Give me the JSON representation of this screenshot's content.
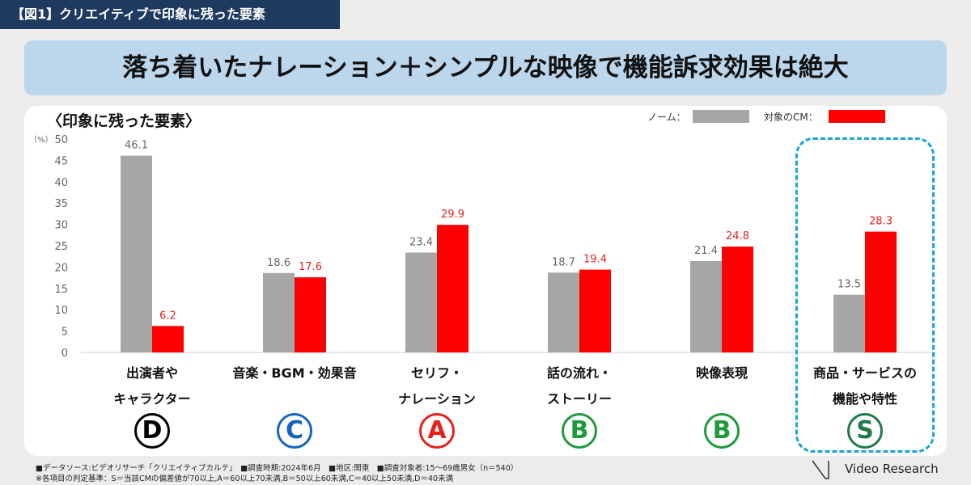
{
  "tag": "【図1】クリエイティブで印象に残った要素",
  "headline": "落ち着いたナレーション＋シンプルな映像で機能訴求効果は絶大",
  "colors": {
    "norm": "#a6a6a6",
    "target": "#ff0000",
    "tag_bg": "#1e3a5f",
    "headline_bg": "#bcd6ec",
    "highlight": "#1aa5d4"
  },
  "chart_data": {
    "type": "bar",
    "title": "〈印象に残った要素〉",
    "ylabel": "（%）",
    "ylim": [
      0,
      50
    ],
    "yticks": [
      "0",
      "5",
      "10",
      "15",
      "20",
      "25",
      "30",
      "35",
      "40",
      "45",
      "50"
    ],
    "categories": [
      [
        "出演者や",
        "キャラクター"
      ],
      [
        "音楽・BGM・効果音"
      ],
      [
        "セリフ・",
        "ナレーション"
      ],
      [
        "話の流れ・",
        "ストーリー"
      ],
      [
        "映像表現"
      ],
      [
        "商品・サービスの",
        "機能や特性"
      ]
    ],
    "series": [
      {
        "name": "ノーム：",
        "values": [
          46.1,
          18.6,
          23.4,
          18.7,
          21.4,
          13.5
        ]
      },
      {
        "name": "対象のCM：",
        "values": [
          6.2,
          17.6,
          29.9,
          19.4,
          24.8,
          28.3
        ]
      }
    ],
    "labels": [
      [
        "46.1",
        "18.6",
        "23.4",
        "18.7",
        "21.4",
        "13.5"
      ],
      [
        "6.2",
        "17.6",
        "29.9",
        "19.4",
        "24.8",
        "28.3"
      ]
    ],
    "grades": [
      {
        "letter": "D",
        "color": "#000000"
      },
      {
        "letter": "C",
        "color": "#1565c0"
      },
      {
        "letter": "A",
        "color": "#e8211e"
      },
      {
        "letter": "B",
        "color": "#1f9a3a"
      },
      {
        "letter": "B",
        "color": "#1f9a3a"
      },
      {
        "letter": "S",
        "color": "#1f7a4a"
      }
    ]
  },
  "footnotes": [
    "■データソース:ビデオリサーチ「クリエイティブカルテ」　■調査時期:2024年6月　■地区:関東　■調査対象者:15～69歳男女（n＝540）",
    "※各項目の判定基準：S＝当該CMの偏差値が70以上,A＝60以上70未満,B＝50以上60未満,C＝40以上50未満,D＝40未満"
  ],
  "brand": "Video Research"
}
